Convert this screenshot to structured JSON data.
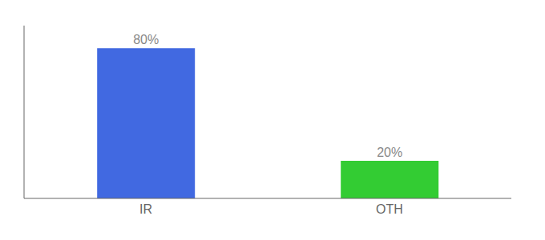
{
  "chart_data": {
    "type": "bar",
    "categories": [
      "IR",
      "OTH"
    ],
    "values": [
      80,
      20
    ],
    "value_labels": [
      "80%",
      "20%"
    ],
    "data_labels": true,
    "colors": [
      "#4169e1",
      "#33cc33"
    ],
    "ylim": [
      0,
      92
    ],
    "tick_labels": "x",
    "grid": false
  }
}
